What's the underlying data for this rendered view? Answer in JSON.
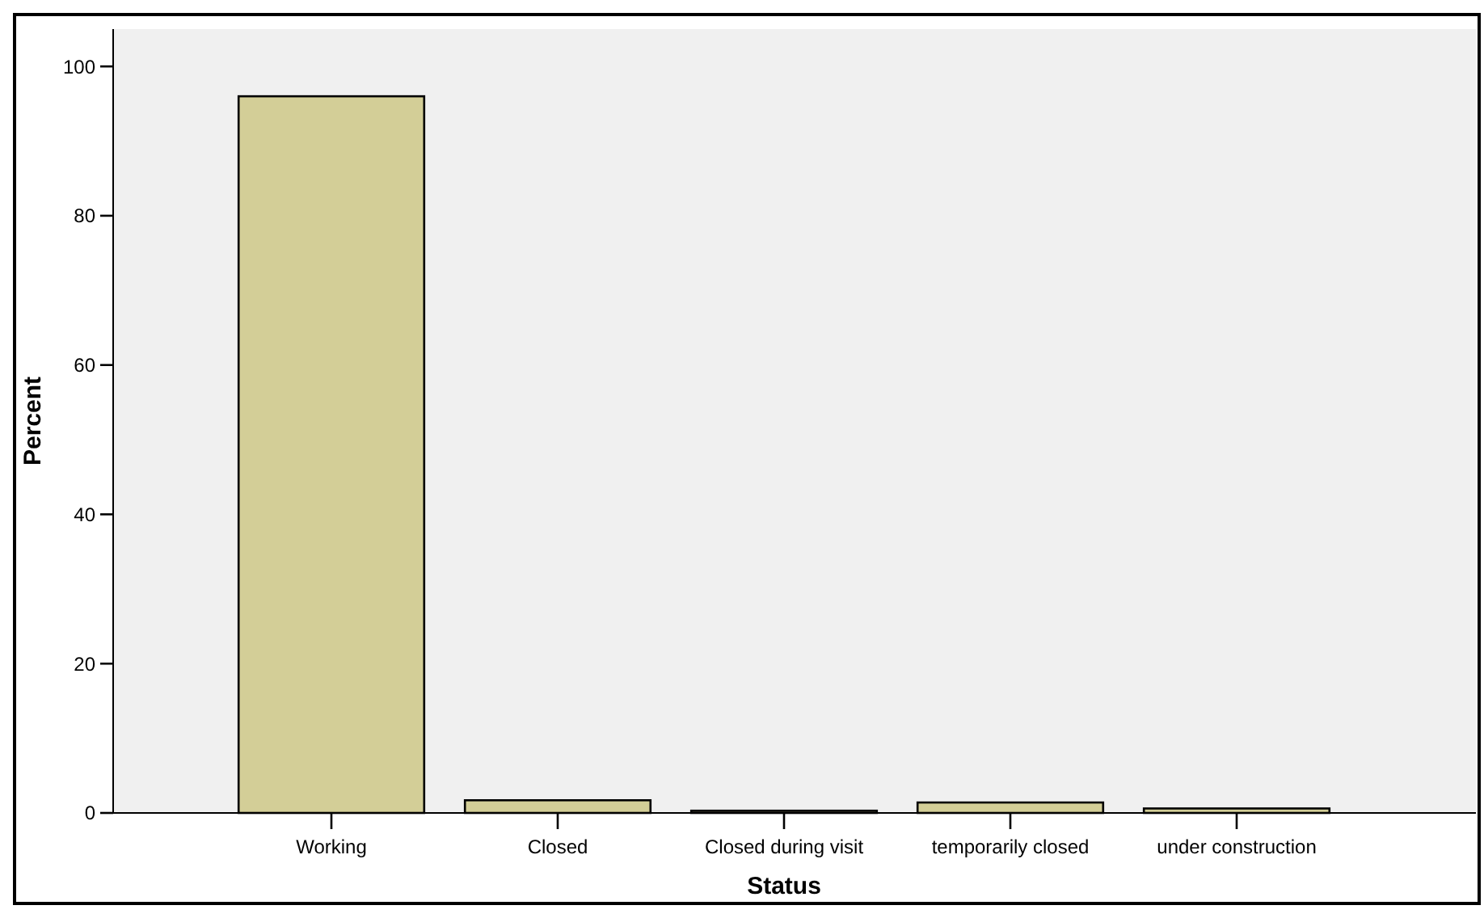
{
  "chart_data": {
    "type": "bar",
    "xlabel": "Status",
    "ylabel": "Percent",
    "categories": [
      "Working",
      "Closed",
      "Closed during visit",
      "temporarily closed",
      "under construction"
    ],
    "values": [
      96.0,
      1.7,
      0.3,
      1.4,
      0.6
    ],
    "color": "#d3ce97",
    "ylim": [
      0,
      105
    ],
    "yticks": [
      0,
      20,
      40,
      60,
      80,
      100
    ],
    "grid": false
  }
}
